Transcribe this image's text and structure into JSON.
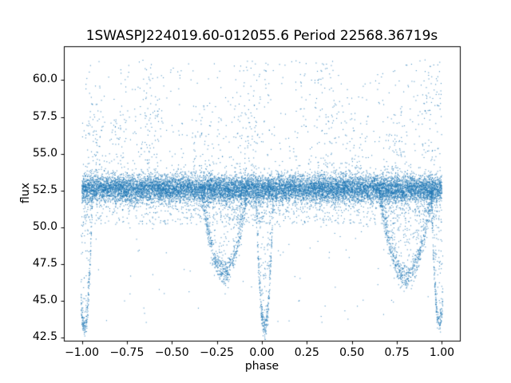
{
  "chart_data": {
    "type": "scatter",
    "title": "1SWASPJ224019.60-012055.6 Period 22568.36719s",
    "xlabel": "phase",
    "ylabel": "flux",
    "xlim": [
      -1.1,
      1.1
    ],
    "ylim": [
      42.3,
      62.3
    ],
    "grid": false,
    "legend": null,
    "marker_color": "#1f77b4",
    "marker_size_px": 1,
    "xticks": [
      {
        "value": -1.0,
        "label": "−1.00"
      },
      {
        "value": -0.75,
        "label": "−0.75"
      },
      {
        "value": -0.5,
        "label": "−0.50"
      },
      {
        "value": -0.25,
        "label": "−0.25"
      },
      {
        "value": 0.0,
        "label": "0.00"
      },
      {
        "value": 0.25,
        "label": "0.25"
      },
      {
        "value": 0.5,
        "label": "0.50"
      },
      {
        "value": 0.75,
        "label": "0.75"
      },
      {
        "value": 1.0,
        "label": "1.00"
      }
    ],
    "yticks": [
      {
        "value": 42.5,
        "label": "42.5"
      },
      {
        "value": 45.0,
        "label": "45.0"
      },
      {
        "value": 47.5,
        "label": "47.5"
      },
      {
        "value": 50.0,
        "label": "50.0"
      },
      {
        "value": 52.5,
        "label": "52.5"
      },
      {
        "value": 55.0,
        "label": "55.0"
      },
      {
        "value": 57.5,
        "label": "57.5"
      },
      {
        "value": 60.0,
        "label": "60.0"
      }
    ],
    "scatter_spec": {
      "seed": 20240,
      "band": {
        "x_min": -1.0,
        "x_max": 1.0,
        "mean": 52.65,
        "std": 0.45,
        "n": 12000
      },
      "band_low_tail": {
        "n": 1100,
        "y_top": 52.2,
        "y_bottom": 50.2
      },
      "upper_scatter": {
        "n": 620,
        "y_min": 53.3,
        "y_max": 61.4,
        "power": 1.6
      },
      "upper_clusters": [
        {
          "x": -0.93,
          "n": 60,
          "y_min": 53.5,
          "y_max": 59.5,
          "x_sigma": 0.03
        },
        {
          "x": -0.8,
          "n": 45,
          "y_min": 53.5,
          "y_max": 58.0,
          "x_sigma": 0.03
        },
        {
          "x": -0.63,
          "n": 70,
          "y_min": 53.5,
          "y_max": 61.3,
          "x_sigma": 0.04
        },
        {
          "x": -0.3,
          "n": 40,
          "y_min": 53.5,
          "y_max": 57.5,
          "x_sigma": 0.04
        },
        {
          "x": -0.05,
          "n": 85,
          "y_min": 53.5,
          "y_max": 61.4,
          "x_sigma": 0.05
        },
        {
          "x": 0.35,
          "n": 70,
          "y_min": 53.5,
          "y_max": 61.2,
          "x_sigma": 0.05
        },
        {
          "x": 0.5,
          "n": 50,
          "y_min": 53.5,
          "y_max": 59.0,
          "x_sigma": 0.04
        },
        {
          "x": 0.75,
          "n": 45,
          "y_min": 53.5,
          "y_max": 58.5,
          "x_sigma": 0.04
        },
        {
          "x": 0.93,
          "n": 75,
          "y_min": 53.5,
          "y_max": 61.3,
          "x_sigma": 0.04
        }
      ],
      "low_sprinkle": {
        "n": 190,
        "y_top": 52.0,
        "y_bottom": 43.5,
        "power": 2.5
      },
      "dips": [
        {
          "center": -0.985,
          "width": 0.045,
          "depth": 9.4,
          "n": 260,
          "edge_n": 120
        },
        {
          "center": -0.21,
          "width": 0.13,
          "depth": 5.7,
          "n": 500,
          "edge_n": 250
        },
        {
          "center": 0.015,
          "width": 0.05,
          "depth": 9.5,
          "n": 280,
          "edge_n": 130
        },
        {
          "center": 0.8,
          "width": 0.15,
          "depth": 6.0,
          "n": 550,
          "edge_n": 280
        },
        {
          "center": 0.985,
          "width": 0.045,
          "depth": 9.2,
          "n": 240,
          "edge_n": 110
        }
      ]
    }
  }
}
